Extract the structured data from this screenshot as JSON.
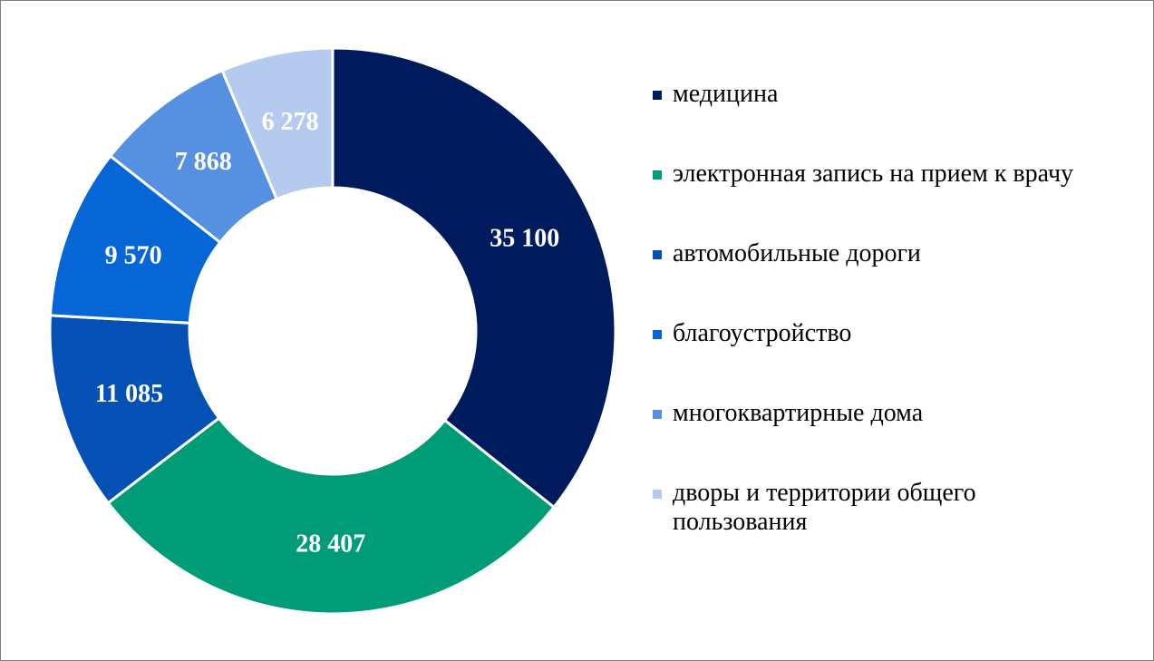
{
  "chart_data": {
    "type": "pie",
    "donut": true,
    "title": "",
    "categories": [
      "медицина",
      "электронная запись на прием к врачу",
      "автомобильные дороги",
      "благоустройство",
      "многоквартирные дома",
      "дворы и территории общего пользования"
    ],
    "values": [
      35100,
      28407,
      11085,
      9570,
      7868,
      6278
    ],
    "value_labels": [
      "35 100",
      "28 407",
      "11 085",
      "9 570",
      "7 868",
      "6 278"
    ],
    "colors": [
      "#001a5e",
      "#009b77",
      "#0450b4",
      "#0666d6",
      "#5690e0",
      "#b4cbef"
    ],
    "legend_position": "right"
  }
}
